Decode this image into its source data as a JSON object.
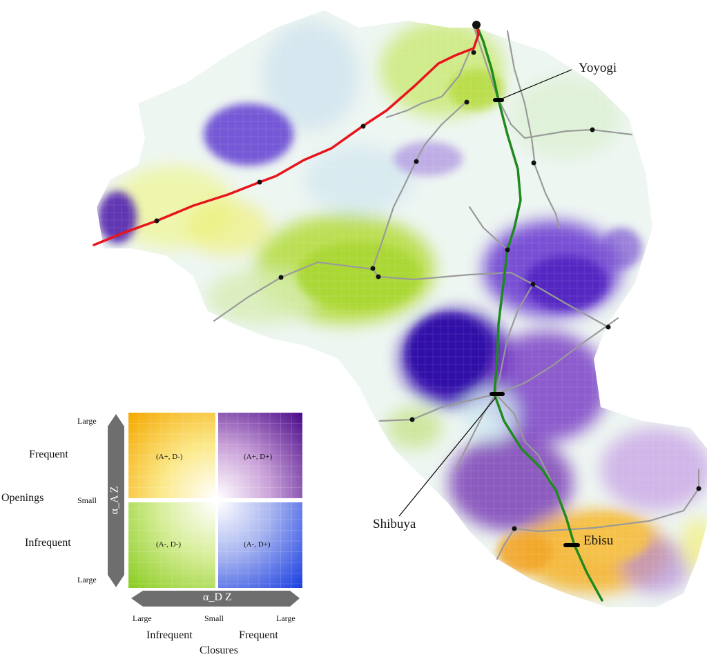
{
  "stations": {
    "yoyogi": "Yoyogi",
    "shibuya": "Shibuya",
    "ebisu": "Ebisu"
  },
  "legend": {
    "rows": {
      "title": "Openings",
      "top": "Frequent",
      "bottom": "Infrequent",
      "tick_top": "Large",
      "tick_mid": "Small",
      "tick_bottom": "Large"
    },
    "columns": {
      "title": "Closures",
      "left": "Infrequent",
      "right": "Frequent",
      "tick_left": "Large",
      "tick_mid": "Small",
      "tick_right": "Large"
    },
    "vertical_axis": "α_A Z",
    "horizontal_axis": "α_D Z",
    "quadrants": {
      "top_left": "(A+, D-)",
      "top_right": "(A+, D+)",
      "bottom_left": "(A-, D-)",
      "bottom_right": "(A-, D+)"
    },
    "colors": {
      "a_plus_d_minus": "#f5a800",
      "a_plus_d_plus": "#4a0a8a",
      "a_minus_d_minus": "#8acc22",
      "a_minus_d_plus": "#1a3ee0",
      "center": "#ffffff"
    }
  },
  "map": {
    "colors": {
      "green_line": "#1e8a1e",
      "red_line": "#e8141c",
      "road": "#9a9a9a",
      "node": "#111111"
    }
  }
}
